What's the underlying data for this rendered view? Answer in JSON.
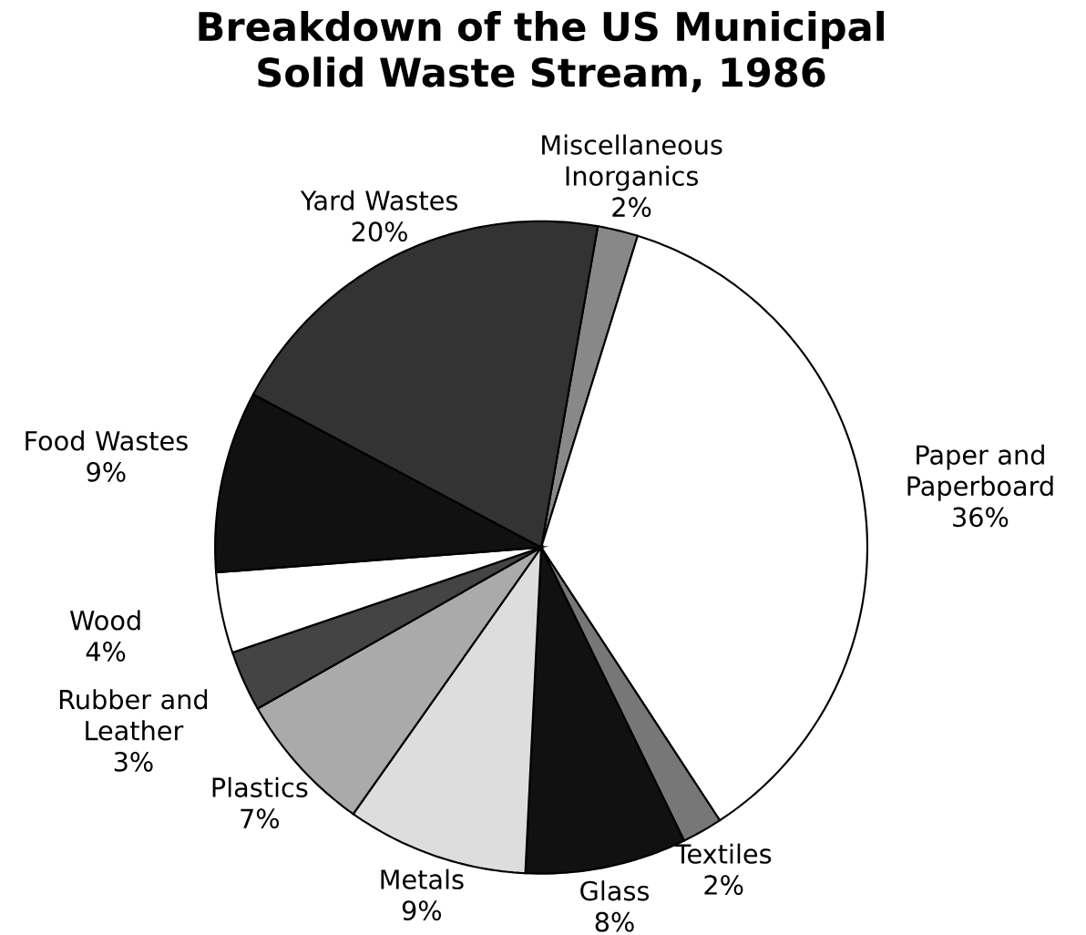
{
  "chart_data": {
    "type": "pie",
    "title": "Breakdown of the US Municipal Solid Waste Stream, 1986",
    "categories": [
      "Miscellaneous Inorganics",
      "Paper and Paperboard",
      "Textiles",
      "Glass",
      "Metals",
      "Plastics",
      "Rubber and Leather",
      "Wood",
      "Food Wastes",
      "Yard Wastes"
    ],
    "values": [
      2,
      36,
      2,
      8,
      9,
      7,
      3,
      4,
      9,
      20
    ],
    "value_labels": [
      "2%",
      "36%",
      "2%",
      "8%",
      "9%",
      "7%",
      "3%",
      "4%",
      "9%",
      "20%"
    ],
    "colors": [
      "#888888",
      "#ffffff",
      "#777777",
      "#111111",
      "#dddddd",
      "#aaaaaa",
      "#444444",
      "#ffffff",
      "#111111",
      "#333333"
    ]
  }
}
